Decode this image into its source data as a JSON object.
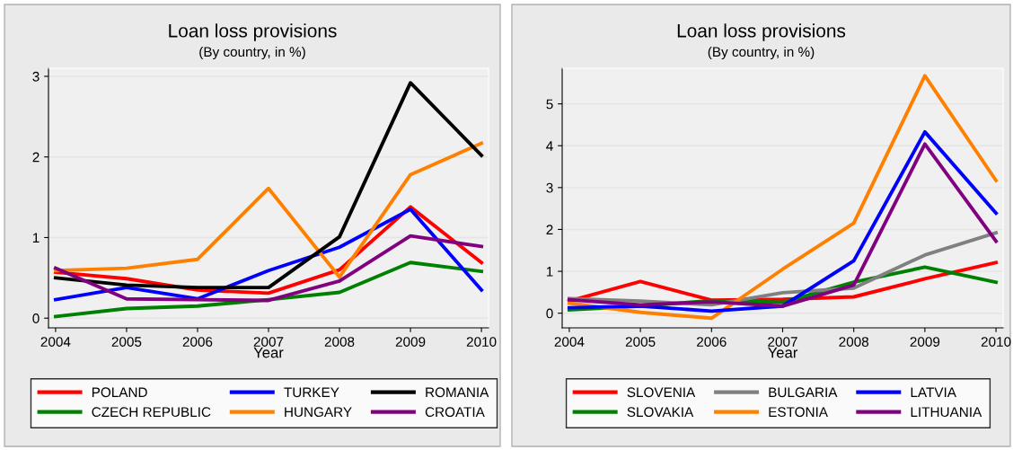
{
  "chart_data": [
    {
      "type": "line",
      "title": "Loan loss provisions",
      "subtitle": "(By country, in %)",
      "xlabel": "Year",
      "x": [
        2004,
        2005,
        2006,
        2007,
        2008,
        2009,
        2010
      ],
      "series": [
        {
          "name": "POLAND",
          "color": "#ff0000",
          "values": [
            0.57,
            0.49,
            0.35,
            0.31,
            0.6,
            1.38,
            0.69
          ]
        },
        {
          "name": "CZECH REPUBLIC",
          "color": "#008000",
          "values": [
            0.02,
            0.12,
            0.15,
            0.23,
            0.32,
            0.69,
            0.58
          ]
        },
        {
          "name": "TURKEY",
          "color": "#0000ff",
          "values": [
            0.23,
            0.38,
            0.24,
            0.59,
            0.88,
            1.35,
            0.35
          ]
        },
        {
          "name": "HUNGARY",
          "color": "#ff8000",
          "values": [
            0.59,
            0.62,
            0.73,
            1.61,
            0.51,
            1.78,
            2.17
          ]
        },
        {
          "name": "ROMANIA",
          "color": "#000000",
          "values": [
            0.5,
            0.41,
            0.38,
            0.38,
            1.01,
            2.92,
            2.02
          ]
        },
        {
          "name": "CROATIA",
          "color": "#800080",
          "values": [
            0.62,
            0.24,
            0.23,
            0.22,
            0.46,
            1.02,
            0.89
          ]
        }
      ],
      "xlim": [
        2003.9,
        2010.1
      ],
      "xticks": [
        2004,
        2005,
        2006,
        2007,
        2008,
        2009,
        2010
      ],
      "ylim": [
        -0.12,
        3.1
      ],
      "yticks": [
        0,
        1,
        2,
        3
      ],
      "grid": "y",
      "legend": "bottom",
      "marker": "none",
      "line_style": "solid"
    },
    {
      "type": "line",
      "title": "Loan loss provisions",
      "subtitle": "(By country, in %)",
      "xlabel": "Year",
      "x": [
        2004,
        2005,
        2006,
        2007,
        2008,
        2009,
        2010
      ],
      "series": [
        {
          "name": "SLOVENIA",
          "color": "#ff0000",
          "values": [
            0.29,
            0.76,
            0.31,
            0.33,
            0.39,
            0.82,
            1.21
          ]
        },
        {
          "name": "SLOVAKIA",
          "color": "#008000",
          "values": [
            0.08,
            0.17,
            0.3,
            0.26,
            0.74,
            1.1,
            0.74
          ]
        },
        {
          "name": "BULGARIA",
          "color": "#808080",
          "values": [
            0.35,
            0.29,
            0.2,
            0.49,
            0.6,
            1.39,
            1.92
          ]
        },
        {
          "name": "ESTONIA",
          "color": "#ff8000",
          "values": [
            0.24,
            0.02,
            -0.12,
            1.05,
            2.15,
            5.67,
            3.17
          ]
        },
        {
          "name": "LATVIA",
          "color": "#0000ff",
          "values": [
            0.13,
            0.17,
            0.05,
            0.17,
            1.25,
            4.33,
            2.39
          ]
        },
        {
          "name": "LITHUANIA",
          "color": "#800080",
          "values": [
            0.32,
            0.2,
            0.27,
            0.17,
            0.67,
            4.04,
            1.72
          ]
        }
      ],
      "xlim": [
        2003.9,
        2010.1
      ],
      "xticks": [
        2004,
        2005,
        2006,
        2007,
        2008,
        2009,
        2010
      ],
      "ylim": [
        -0.35,
        5.85
      ],
      "yticks": [
        0,
        1,
        2,
        3,
        4,
        5
      ],
      "grid": "y",
      "legend": "bottom",
      "marker": "none",
      "line_style": "solid"
    }
  ]
}
